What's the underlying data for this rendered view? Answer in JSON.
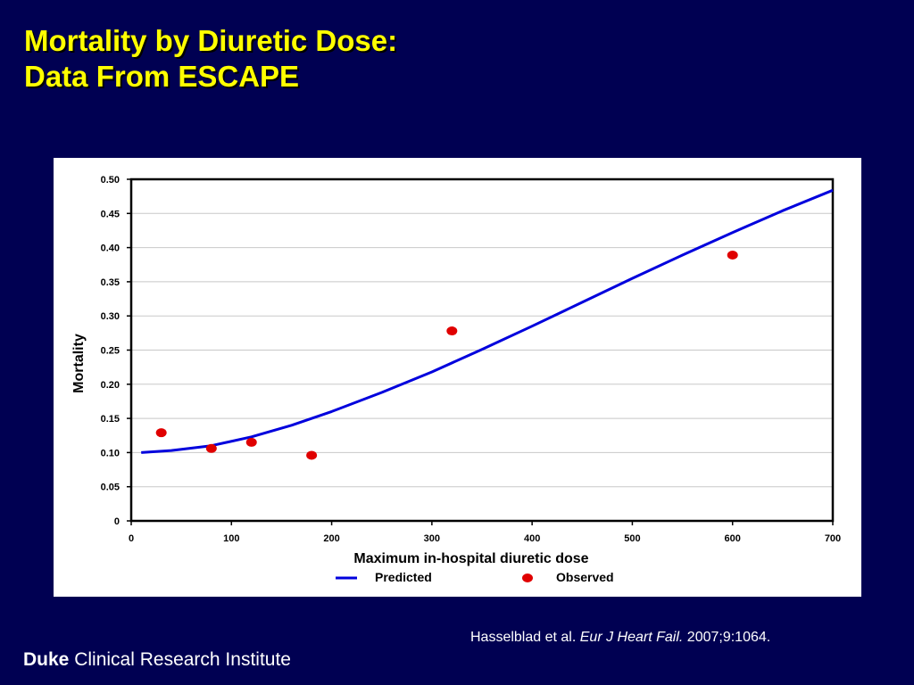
{
  "slide": {
    "title_line1": "Mortality by Diuretic Dose:",
    "title_line2": "Data From ESCAPE",
    "citation_authors": "Hasselblad et al.",
    "citation_journal": "Eur J Heart Fail.",
    "citation_ref": "2007;9:1064.",
    "footer_brand": "Duke",
    "footer_rest": "Clinical Research Institute"
  },
  "colors": {
    "background": "#000052",
    "title": "#ffff00",
    "predicted_line": "#0000dd",
    "observed_points": "#e00000"
  },
  "chart_data": {
    "type": "scatter",
    "xlabel": "Maximum in-hospital diuretic dose",
    "ylabel": "Mortality",
    "xlim": [
      0,
      700
    ],
    "ylim": [
      0,
      0.5
    ],
    "x_ticks": [
      0,
      100,
      200,
      300,
      400,
      500,
      600,
      700
    ],
    "y_ticks": [
      0,
      0.05,
      0.1,
      0.15,
      0.2,
      0.25,
      0.3,
      0.35,
      0.4,
      0.45,
      0.5
    ],
    "x_tick_labels": [
      "0",
      "100",
      "200",
      "300",
      "400",
      "500",
      "600",
      "700"
    ],
    "y_tick_labels": [
      "0",
      "0.05",
      "0.10",
      "0.15",
      "0.20",
      "0.25",
      "0.30",
      "0.35",
      "0.40",
      "0.45",
      "0.50"
    ],
    "grid": "horizontal",
    "legend_placement": "bottom-center",
    "series": [
      {
        "name": "Predicted",
        "type": "line",
        "x": [
          10,
          40,
          80,
          120,
          160,
          200,
          250,
          300,
          350,
          400,
          450,
          500,
          550,
          600,
          650,
          700
        ],
        "y": [
          0.1,
          0.103,
          0.11,
          0.123,
          0.14,
          0.16,
          0.188,
          0.218,
          0.251,
          0.285,
          0.32,
          0.355,
          0.389,
          0.422,
          0.454,
          0.484
        ]
      },
      {
        "name": "Observed",
        "type": "scatter",
        "x": [
          30,
          80,
          120,
          180,
          320,
          600
        ],
        "y": [
          0.129,
          0.106,
          0.115,
          0.096,
          0.278,
          0.389
        ]
      }
    ]
  }
}
